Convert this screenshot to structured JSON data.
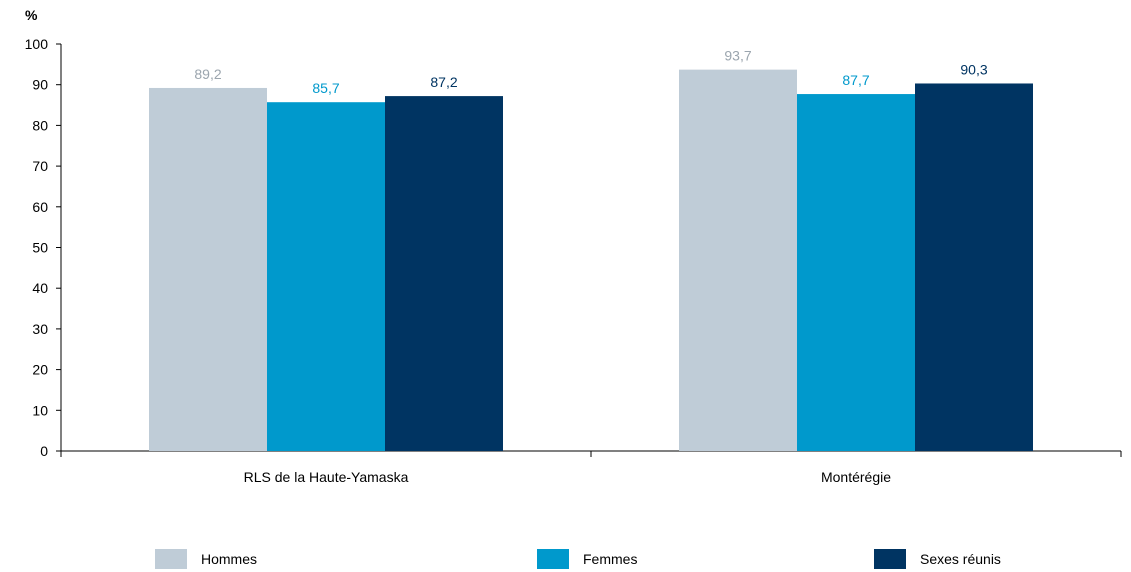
{
  "chart_data": {
    "type": "bar",
    "y_unit": "%",
    "categories": [
      "RLS de la Haute-Yamaska",
      "Montérégie"
    ],
    "series": [
      {
        "name": "Hommes",
        "values": [
          89.2,
          93.7
        ],
        "labels": [
          "89,2",
          "93,7"
        ],
        "color": "#BFCCD7",
        "label_color": "#9BA5AE"
      },
      {
        "name": "Femmes",
        "values": [
          85.7,
          87.7
        ],
        "labels": [
          "85,7",
          "87,7"
        ],
        "color": "#0099CC",
        "label_color": "#0099CC"
      },
      {
        "name": "Sexes réunis",
        "values": [
          87.2,
          90.3
        ],
        "labels": [
          "87,2",
          "90,3"
        ],
        "color": "#003462",
        "label_color": "#003462"
      }
    ],
    "ylim": [
      0,
      100
    ],
    "yticks": [
      0,
      10,
      20,
      30,
      40,
      50,
      60,
      70,
      80,
      90,
      100
    ],
    "grid": false,
    "legend_position": "bottom"
  }
}
